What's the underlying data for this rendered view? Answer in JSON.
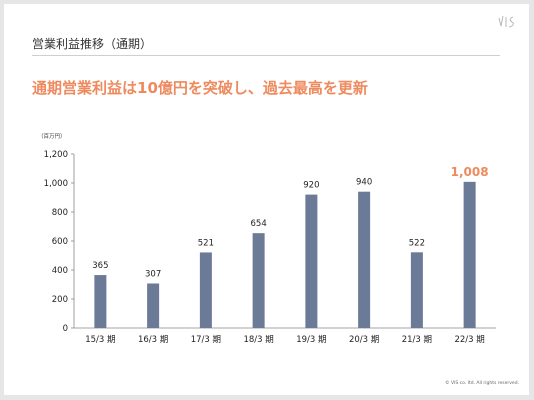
{
  "header": {
    "section_title": "営業利益推移（通期）",
    "headline": "通期営業利益は10億円を突破し、過去最高を更新"
  },
  "footer": {
    "copyright": "© VIS co. ltd. All rights reserved."
  },
  "logo": {
    "icon": "vis-logo-icon"
  },
  "colors": {
    "bar": "#6b7a96",
    "accent": "#ee8a5e",
    "text": "#222222",
    "axis": "#888888"
  },
  "chart_data": {
    "type": "bar",
    "unit_label": "（百万円）",
    "categories": [
      "15/3 期",
      "16/3 期",
      "17/3 期",
      "18/3 期",
      "19/3 期",
      "20/3 期",
      "21/3 期",
      "22/3 期"
    ],
    "values": [
      365,
      307,
      521,
      654,
      920,
      940,
      522,
      1008
    ],
    "data_labels": [
      "365",
      "307",
      "521",
      "654",
      "920",
      "940",
      "522",
      "1,008"
    ],
    "highlight_index": 7,
    "yticks": [
      0,
      200,
      400,
      600,
      800,
      1000,
      1200
    ],
    "ytick_labels": [
      "0",
      "200",
      "400",
      "600",
      "800",
      "1,000",
      "1,200"
    ],
    "ylim": [
      0,
      1200
    ],
    "grid": false
  }
}
